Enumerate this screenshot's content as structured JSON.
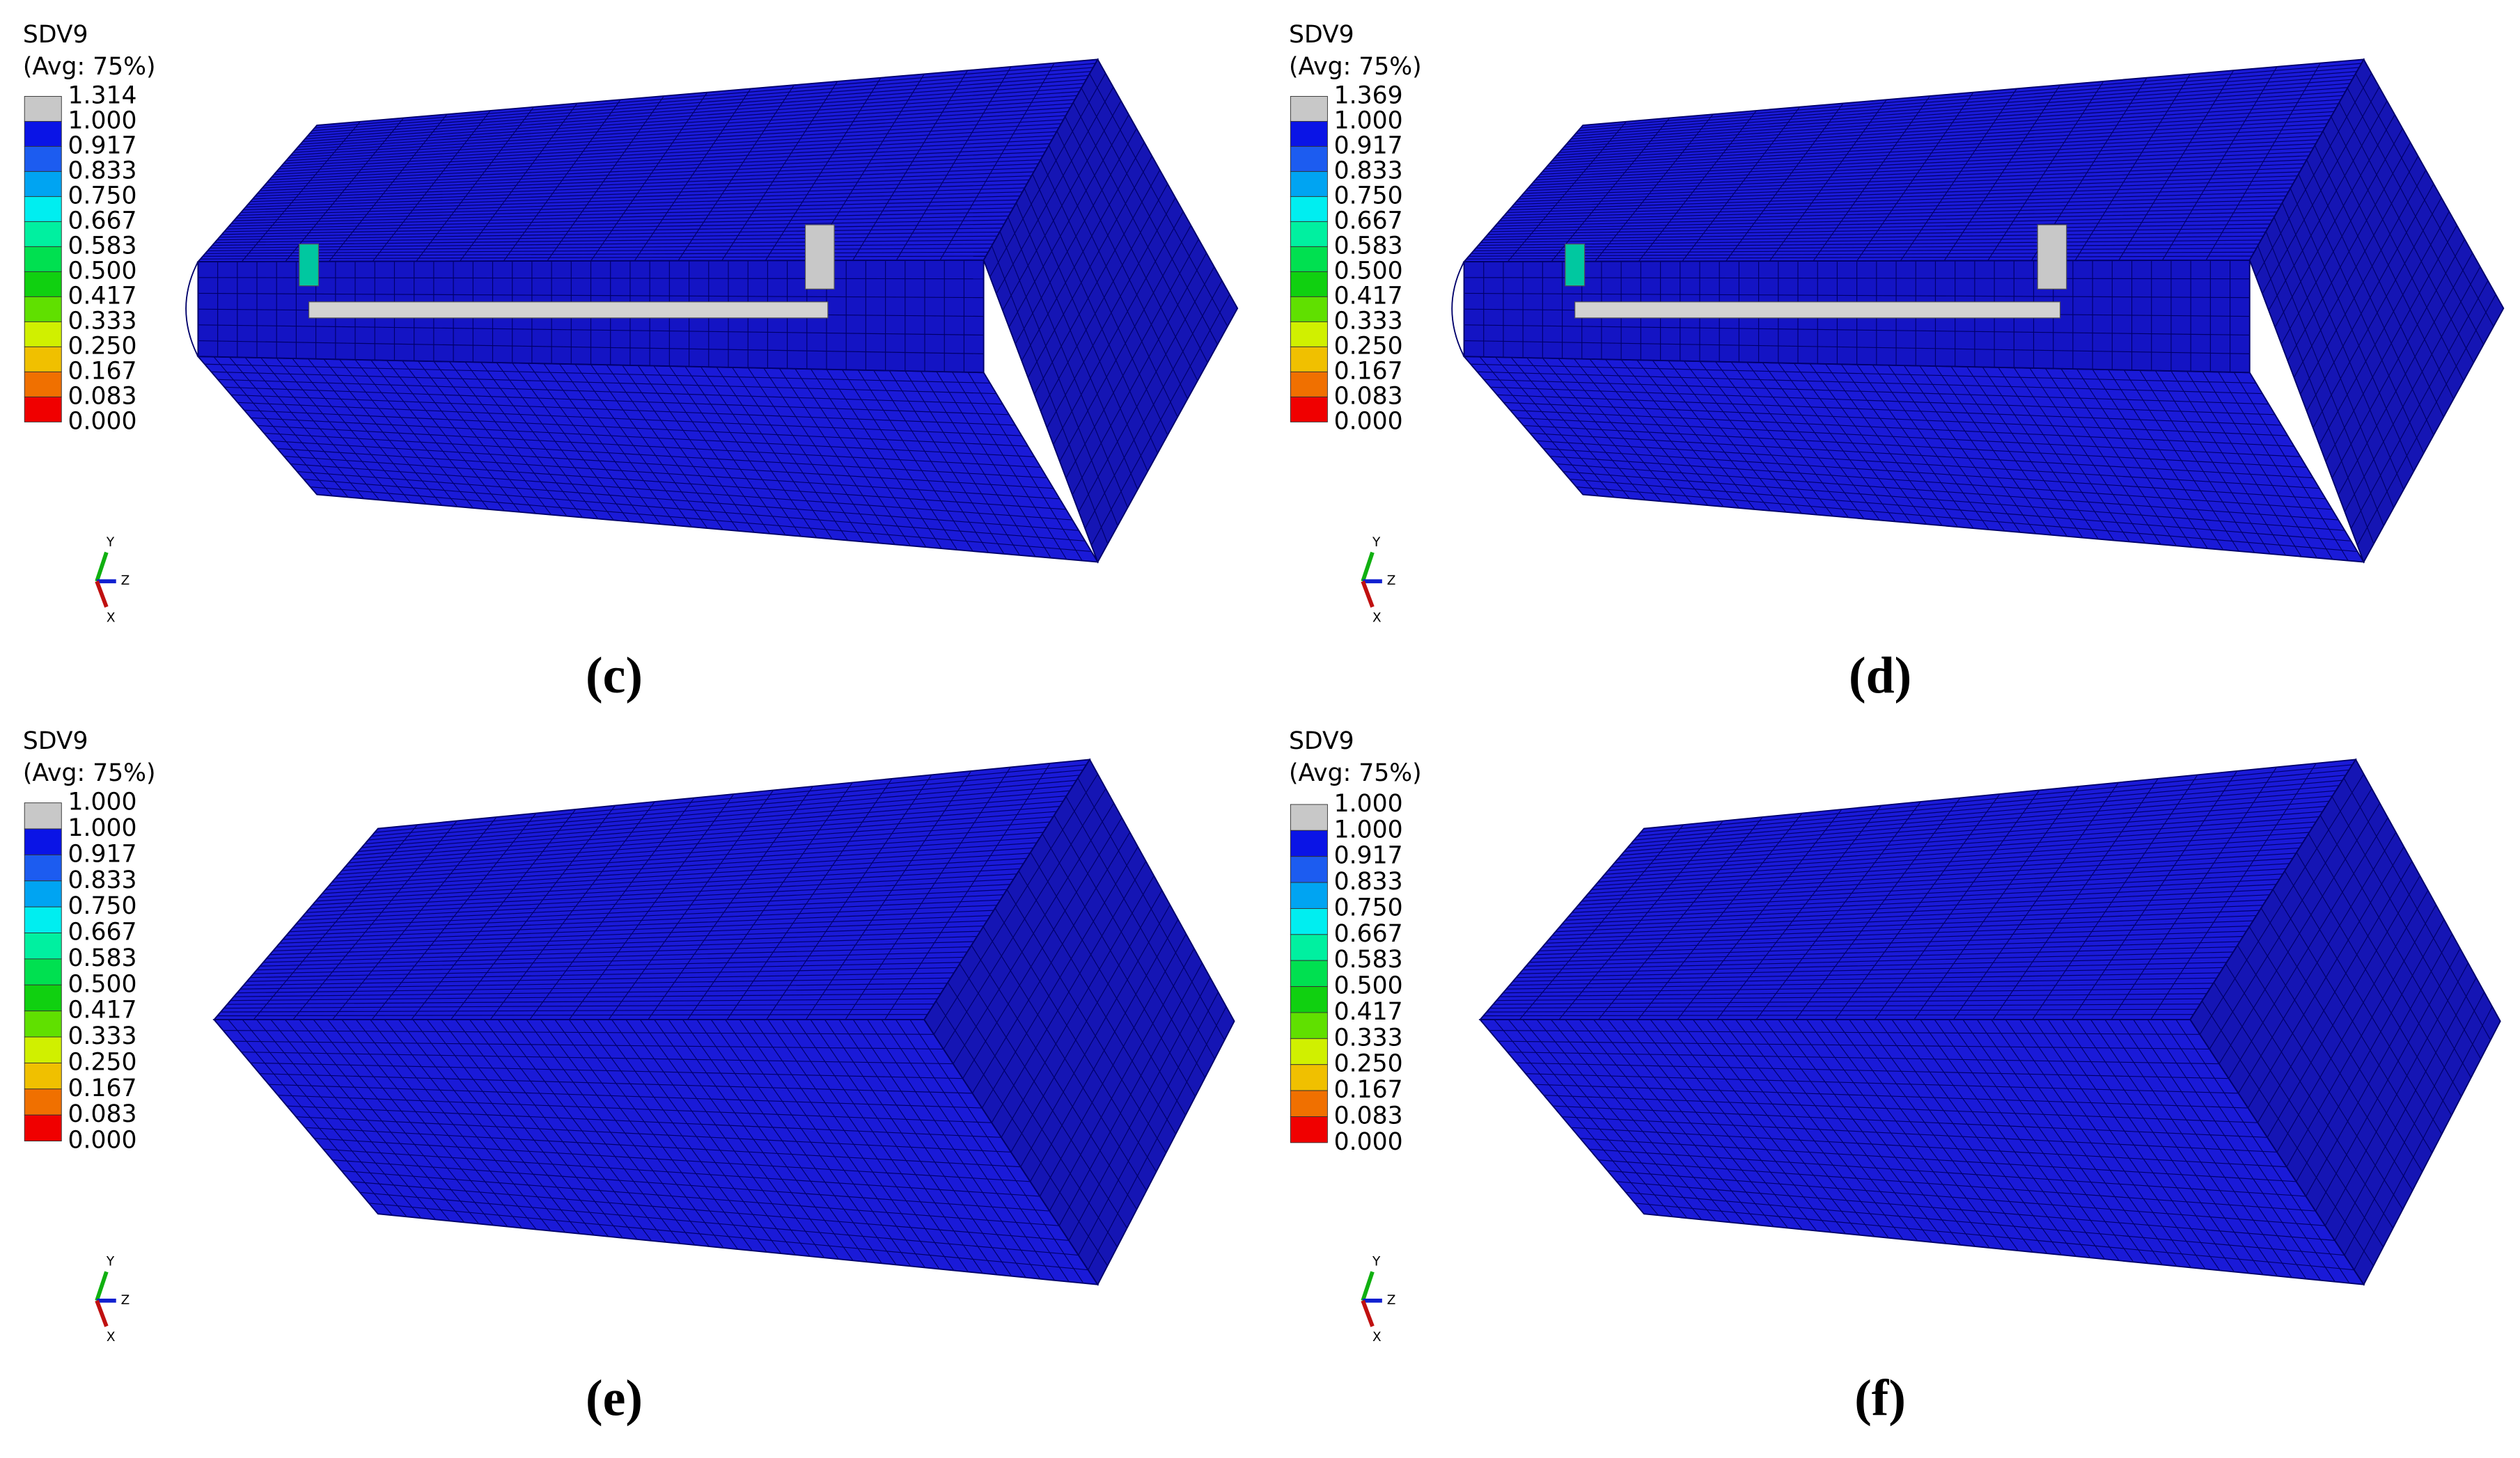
{
  "panels": [
    {
      "legend": {
        "title": "SDV9",
        "subtitle": "(Avg: 75%)",
        "labels": [
          "1.314",
          "1.000",
          "0.917",
          "0.833",
          "0.750",
          "0.667",
          "0.583",
          "0.500",
          "0.417",
          "0.333",
          "0.250",
          "0.167",
          "0.083",
          "0.000"
        ]
      },
      "triad": {
        "y": "Y",
        "z": "Z",
        "x": "X"
      },
      "caption": "(c)"
    },
    {
      "legend": {
        "title": "SDV9",
        "subtitle": "(Avg: 75%)",
        "labels": [
          "1.369",
          "1.000",
          "0.917",
          "0.833",
          "0.750",
          "0.667",
          "0.583",
          "0.500",
          "0.417",
          "0.333",
          "0.250",
          "0.167",
          "0.083",
          "0.000"
        ]
      },
      "triad": {
        "y": "Y",
        "z": "Z",
        "x": "X"
      },
      "caption": "(d)"
    },
    {
      "legend": {
        "title": "SDV9",
        "subtitle": "(Avg: 75%)",
        "labels": [
          "1.000",
          "1.000",
          "0.917",
          "0.833",
          "0.750",
          "0.667",
          "0.583",
          "0.500",
          "0.417",
          "0.333",
          "0.250",
          "0.167",
          "0.083",
          "0.000"
        ]
      },
      "triad": {
        "y": "Y",
        "z": "Z",
        "x": "X"
      },
      "caption": "(e)"
    },
    {
      "legend": {
        "title": "SDV9",
        "subtitle": "(Avg: 75%)",
        "labels": [
          "1.000",
          "1.000",
          "0.917",
          "0.833",
          "0.750",
          "0.667",
          "0.583",
          "0.500",
          "0.417",
          "0.333",
          "0.250",
          "0.167",
          "0.083",
          "0.000"
        ]
      },
      "triad": {
        "y": "Y",
        "z": "Z",
        "x": "X"
      },
      "caption": "(f)"
    }
  ]
}
